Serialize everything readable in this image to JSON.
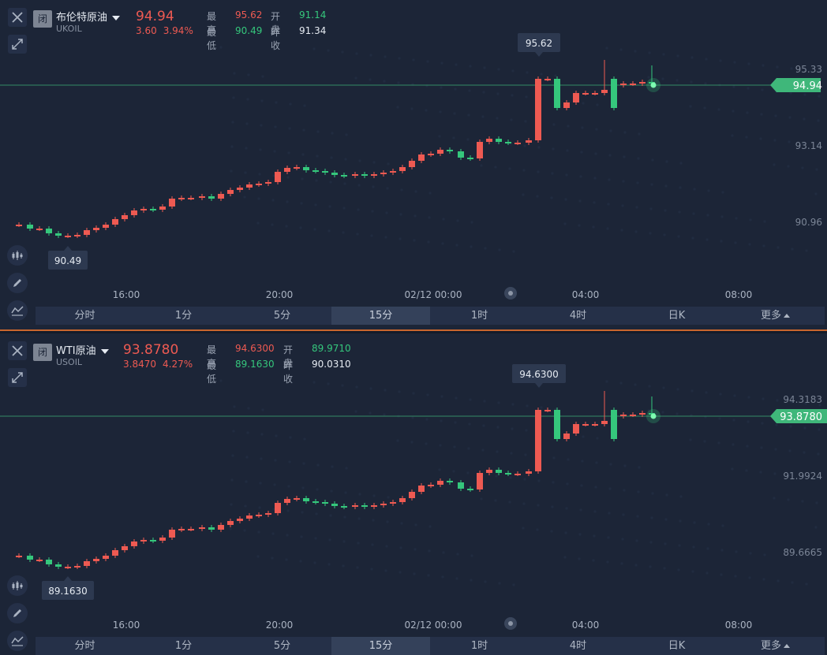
{
  "panels": [
    {
      "closed_badge": "闭",
      "name": "布伦特原油",
      "code": "UKOIL",
      "price": "94.94",
      "change": "3.60",
      "change_pct": "3.94%",
      "high_label": "最高",
      "high": "95.62",
      "open_label": "开盘",
      "open": "91.14",
      "low_label": "最低",
      "low": "90.49",
      "prev_label": "昨收",
      "prev": "91.34",
      "y_ticks": [
        "95.33",
        "93.14",
        "90.96"
      ],
      "current_tag": "94.94",
      "max_label": "95.62",
      "min_label": "90.49",
      "x_ticks": [
        "16:00",
        "20:00",
        "02/12 00:00",
        "04:00",
        "08:00"
      ]
    },
    {
      "closed_badge": "闭",
      "name": "WTI原油",
      "code": "USOIL",
      "price": "93.8780",
      "change": "3.8470",
      "change_pct": "4.27%",
      "high_label": "最高",
      "high": "94.6300",
      "open_label": "开盘",
      "open": "89.9710",
      "low_label": "最低",
      "low": "89.1630",
      "prev_label": "昨收",
      "prev": "90.0310",
      "y_ticks": [
        "94.3183",
        "91.9924",
        "89.6665"
      ],
      "current_tag": "93.8780",
      "max_label": "94.6300",
      "min_label": "89.1630",
      "x_ticks": [
        "16:00",
        "20:00",
        "02/12 00:00",
        "04:00",
        "08:00"
      ]
    }
  ],
  "timeframes": [
    "分时",
    "1分",
    "5分",
    "15分",
    "1时",
    "4时",
    "日K",
    "更多"
  ],
  "active_timeframe": "15分",
  "colors": {
    "up": "#ee5a52",
    "down": "#35c77c",
    "bg": "#1c2537",
    "tag": "#3fb77a"
  },
  "icons": {
    "close": "close-icon",
    "expand": "expand-icon",
    "indicator": "candlestick-icon",
    "draw": "pencil-icon",
    "line": "line-chart-icon"
  }
}
